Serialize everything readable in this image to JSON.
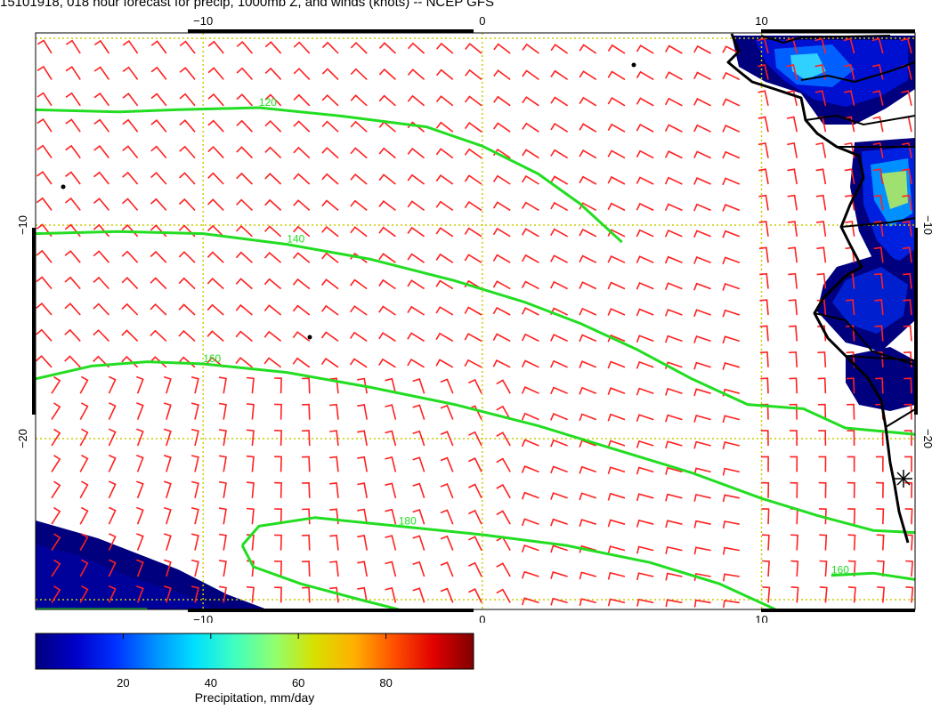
{
  "title": "15101918, 018 hour forecast for precip, 1000mb Z, and winds (knots) -- NCEP GFS",
  "map": {
    "lon_range": [
      -16,
      15.5
    ],
    "lat_range": [
      -28,
      -1
    ],
    "lon_ticks": [
      {
        "v": -10,
        "label": "−10"
      },
      {
        "v": 0,
        "label": "0"
      },
      {
        "v": 10,
        "label": "10"
      }
    ],
    "lat_ticks": [
      {
        "v": -10,
        "label": "−10"
      },
      {
        "v": -20,
        "label": "−20"
      }
    ],
    "grid_color": "#cccc00",
    "barb_color": "#ff2020",
    "contour_color": "#22dd22",
    "coast_color": "#000000"
  },
  "contours": [
    {
      "label": "120",
      "points": [
        [
          -16,
          -4.6
        ],
        [
          -13,
          -4.7
        ],
        [
          -11,
          -4.6
        ],
        [
          -8,
          -4.5
        ],
        [
          -5,
          -4.9
        ],
        [
          -2,
          -5.4
        ],
        [
          0,
          -6.3
        ],
        [
          2,
          -7.6
        ],
        [
          3.5,
          -9.0
        ],
        [
          5,
          -10.8
        ]
      ]
    },
    {
      "label": "140",
      "points": [
        [
          -16,
          -10.4
        ],
        [
          -13,
          -10.3
        ],
        [
          -10,
          -10.4
        ],
        [
          -7,
          -10.9
        ],
        [
          -4,
          -11.6
        ],
        [
          -1,
          -12.6
        ],
        [
          1.5,
          -13.6
        ],
        [
          3.5,
          -14.6
        ],
        [
          5.5,
          -15.8
        ],
        [
          7.5,
          -17.2
        ],
        [
          9.5,
          -18.4
        ],
        [
          11.5,
          -18.6
        ],
        [
          13,
          -19.5
        ],
        [
          15.5,
          -19.8
        ]
      ]
    },
    {
      "label": "160",
      "points": [
        [
          -16,
          -17.2
        ],
        [
          -14,
          -16.6
        ],
        [
          -12,
          -16.4
        ],
        [
          -10,
          -16.5
        ],
        [
          -7,
          -16.9
        ],
        [
          -4,
          -17.6
        ],
        [
          -1,
          -18.4
        ],
        [
          2,
          -19.4
        ],
        [
          5,
          -20.6
        ],
        [
          7.5,
          -21.6
        ],
        [
          10,
          -22.8
        ],
        [
          12,
          -23.6
        ],
        [
          14,
          -24.3
        ],
        [
          15.5,
          -24.4
        ]
      ]
    },
    {
      "label": "180",
      "points": [
        [
          -8.6,
          -25.0
        ],
        [
          -8,
          -24.1
        ],
        [
          -6,
          -23.7
        ],
        [
          -3,
          -24.1
        ],
        [
          0,
          -24.5
        ],
        [
          3,
          -25.0
        ],
        [
          6,
          -25.8
        ],
        [
          8.5,
          -26.8
        ],
        [
          10.5,
          -28.0
        ]
      ]
    },
    {
      "label": "160",
      "points": [
        [
          15.5,
          -26.6
        ],
        [
          14,
          -26.3
        ],
        [
          12.5,
          -26.4
        ]
      ]
    },
    {
      "label": "",
      "points": [
        [
          -8.6,
          -25.0
        ],
        [
          -8.2,
          -26.0
        ],
        [
          -6.5,
          -26.8
        ],
        [
          -4.5,
          -27.5
        ],
        [
          -3,
          -28.0
        ]
      ]
    },
    {
      "label": "",
      "points": [
        [
          -16,
          -28.0
        ],
        [
          -12,
          -28.0
        ]
      ]
    }
  ],
  "colorbar": {
    "label": "Precipitation, mm/day",
    "tick_values": [
      20,
      40,
      60,
      80
    ],
    "min": 0,
    "max": 100,
    "colors": [
      "#00007f",
      "#0000c8",
      "#0030ff",
      "#0090ff",
      "#00e0ff",
      "#40ffc0",
      "#90ff70",
      "#d8e000",
      "#ffb000",
      "#ff5000",
      "#e00000",
      "#800000"
    ]
  }
}
